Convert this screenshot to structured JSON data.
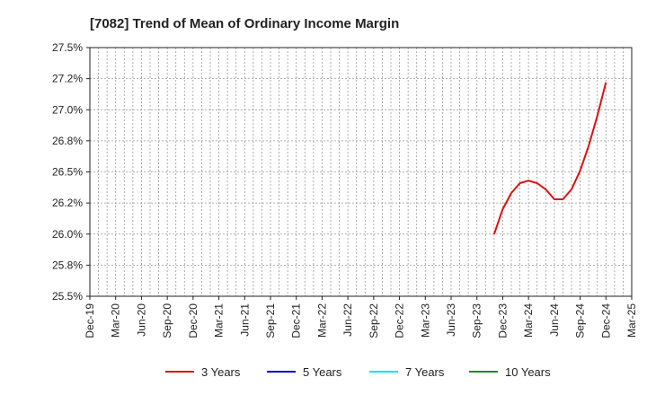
{
  "chart_data": {
    "type": "line",
    "title": "[7082]  Trend of Mean of Ordinary Income Margin",
    "xlabel": "",
    "ylabel": "",
    "ylim": [
      25.5,
      27.5
    ],
    "yticks": [
      25.5,
      25.75,
      26.0,
      26.25,
      26.5,
      26.75,
      27.0,
      27.25,
      27.5
    ],
    "ytick_labels": [
      "25.5%",
      "25.8%",
      "26.0%",
      "26.2%",
      "26.5%",
      "26.8%",
      "27.0%",
      "27.2%",
      "27.5%"
    ],
    "xtick_labels": [
      "Dec-19",
      "Mar-20",
      "Jun-20",
      "Sep-20",
      "Dec-20",
      "Mar-21",
      "Jun-21",
      "Sep-21",
      "Dec-21",
      "Mar-22",
      "Jun-22",
      "Sep-22",
      "Dec-22",
      "Mar-23",
      "Jun-23",
      "Sep-23",
      "Dec-23",
      "Mar-24",
      "Jun-24",
      "Sep-24",
      "Dec-24",
      "Mar-25"
    ],
    "x_month_range": [
      0,
      63
    ],
    "grid": true,
    "legend_position": "bottom",
    "series": [
      {
        "name": "3 Years",
        "color": "#dd1111",
        "x_month": [
          47,
          48,
          49,
          50,
          51,
          52,
          53,
          54,
          55,
          56,
          57,
          58,
          59,
          60
        ],
        "values": [
          26.0,
          26.2,
          26.33,
          26.41,
          26.43,
          26.41,
          26.36,
          26.28,
          26.28,
          26.36,
          26.51,
          26.71,
          26.95,
          27.22
        ]
      },
      {
        "name": "5 Years",
        "color": "#0000cc",
        "x_month": [],
        "values": []
      },
      {
        "name": "7 Years",
        "color": "#00e5ee",
        "x_month": [],
        "values": []
      },
      {
        "name": "10 Years",
        "color": "#228b22",
        "x_month": [],
        "values": []
      }
    ]
  }
}
